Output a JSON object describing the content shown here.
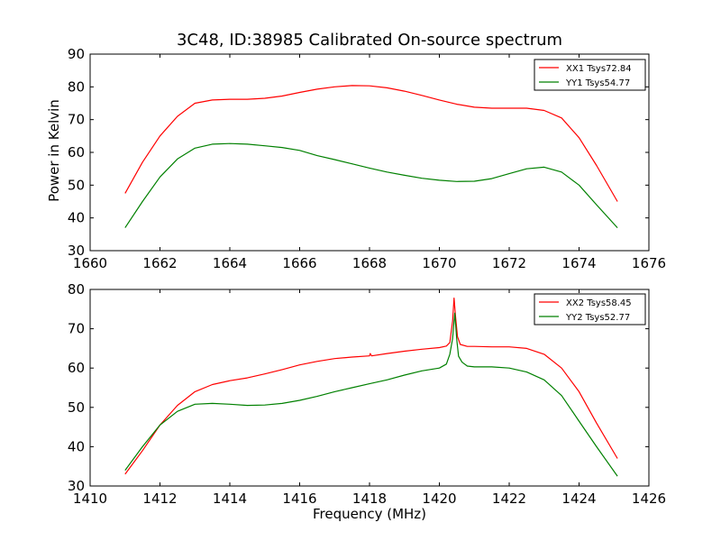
{
  "colors": {
    "xx": "#ff0000",
    "yy": "#008000",
    "axes": "#000000",
    "background": "#ffffff"
  },
  "chart_data": [
    {
      "type": "line",
      "title": "3C48, ID:38985 Calibrated On-source spectrum",
      "xlabel": "",
      "ylabel": "Power in Kelvin",
      "xlim": [
        1660,
        1676
      ],
      "ylim": [
        30,
        90
      ],
      "xticks": [
        1660,
        1662,
        1664,
        1666,
        1668,
        1670,
        1672,
        1674,
        1676
      ],
      "yticks": [
        30,
        40,
        50,
        60,
        70,
        80,
        90
      ],
      "grid": false,
      "legend_position": "top-right",
      "series": [
        {
          "name": "XX1 Tsys72.84",
          "color": "#ff0000",
          "x": [
            1661.0,
            1661.5,
            1662.0,
            1662.5,
            1663.0,
            1663.5,
            1664.0,
            1664.5,
            1665.0,
            1665.5,
            1666.0,
            1666.5,
            1667.0,
            1667.5,
            1668.0,
            1668.5,
            1669.0,
            1669.5,
            1670.0,
            1670.5,
            1671.0,
            1671.5,
            1672.0,
            1672.5,
            1673.0,
            1673.5,
            1674.0,
            1674.5,
            1675.1
          ],
          "y": [
            47.5,
            57.0,
            65.0,
            71.0,
            75.0,
            76.0,
            76.2,
            76.2,
            76.5,
            77.2,
            78.3,
            79.3,
            80.0,
            80.4,
            80.3,
            79.7,
            78.7,
            77.4,
            76.0,
            74.7,
            73.8,
            73.5,
            73.5,
            73.5,
            72.8,
            70.5,
            64.5,
            56.0,
            45.0
          ]
        },
        {
          "name": "YY1 Tsys54.77",
          "color": "#008000",
          "x": [
            1661.0,
            1661.5,
            1662.0,
            1662.5,
            1663.0,
            1663.5,
            1664.0,
            1664.5,
            1665.0,
            1665.5,
            1666.0,
            1666.5,
            1667.0,
            1667.5,
            1668.0,
            1668.5,
            1669.0,
            1669.5,
            1670.0,
            1670.5,
            1671.0,
            1671.5,
            1672.0,
            1672.5,
            1673.0,
            1673.5,
            1674.0,
            1674.5,
            1675.1
          ],
          "y": [
            37.0,
            45.0,
            52.5,
            58.0,
            61.3,
            62.5,
            62.7,
            62.5,
            62.0,
            61.5,
            60.6,
            59.0,
            57.8,
            56.5,
            55.2,
            54.0,
            53.0,
            52.1,
            51.5,
            51.1,
            51.2,
            52.0,
            53.5,
            55.0,
            55.5,
            54.0,
            50.0,
            44.0,
            37.0
          ]
        }
      ]
    },
    {
      "type": "line",
      "title": "",
      "xlabel": "Frequency (MHz)",
      "ylabel": "",
      "xlim": [
        1410,
        1426
      ],
      "ylim": [
        30,
        80
      ],
      "xticks": [
        1410,
        1412,
        1414,
        1416,
        1418,
        1420,
        1422,
        1424,
        1426
      ],
      "yticks": [
        30,
        40,
        50,
        60,
        70,
        80
      ],
      "grid": false,
      "legend_position": "top-right",
      "series": [
        {
          "name": "XX2 Tsys58.45",
          "color": "#ff0000",
          "x": [
            1411.0,
            1411.5,
            1412.0,
            1412.5,
            1413.0,
            1413.5,
            1414.0,
            1414.5,
            1415.0,
            1415.5,
            1416.0,
            1416.5,
            1417.0,
            1417.5,
            1418.0,
            1418.02,
            1418.06,
            1418.5,
            1419.0,
            1419.5,
            1420.0,
            1420.2,
            1420.3,
            1420.38,
            1420.42,
            1420.46,
            1420.52,
            1420.6,
            1420.8,
            1421.0,
            1421.5,
            1422.0,
            1422.5,
            1423.0,
            1423.5,
            1424.0,
            1424.5,
            1425.1
          ],
          "y": [
            33.0,
            39.0,
            45.5,
            50.5,
            54.0,
            55.8,
            56.8,
            57.5,
            58.5,
            59.6,
            60.8,
            61.7,
            62.4,
            62.8,
            63.1,
            63.7,
            63.1,
            63.7,
            64.3,
            64.8,
            65.2,
            65.6,
            66.5,
            72.0,
            77.8,
            73.5,
            68.0,
            66.0,
            65.5,
            65.5,
            65.4,
            65.4,
            65.0,
            63.5,
            60.0,
            54.0,
            46.0,
            37.0
          ]
        },
        {
          "name": "YY2 Tsys52.77",
          "color": "#008000",
          "x": [
            1411.0,
            1411.5,
            1412.0,
            1412.5,
            1413.0,
            1413.5,
            1414.0,
            1414.5,
            1415.0,
            1415.5,
            1416.0,
            1416.5,
            1417.0,
            1417.5,
            1418.0,
            1418.5,
            1419.0,
            1419.5,
            1420.0,
            1420.2,
            1420.3,
            1420.38,
            1420.44,
            1420.5,
            1420.55,
            1420.65,
            1420.8,
            1421.0,
            1421.5,
            1422.0,
            1422.5,
            1423.0,
            1423.5,
            1424.0,
            1424.5,
            1425.1
          ],
          "y": [
            34.0,
            40.0,
            45.5,
            49.0,
            50.8,
            51.0,
            50.8,
            50.5,
            50.6,
            51.0,
            51.8,
            52.8,
            54.0,
            55.0,
            56.0,
            57.0,
            58.2,
            59.3,
            60.0,
            61.0,
            63.5,
            67.5,
            74.0,
            67.0,
            63.0,
            61.5,
            60.5,
            60.3,
            60.3,
            60.0,
            59.0,
            57.0,
            53.0,
            46.5,
            40.0,
            32.5
          ]
        }
      ]
    }
  ]
}
